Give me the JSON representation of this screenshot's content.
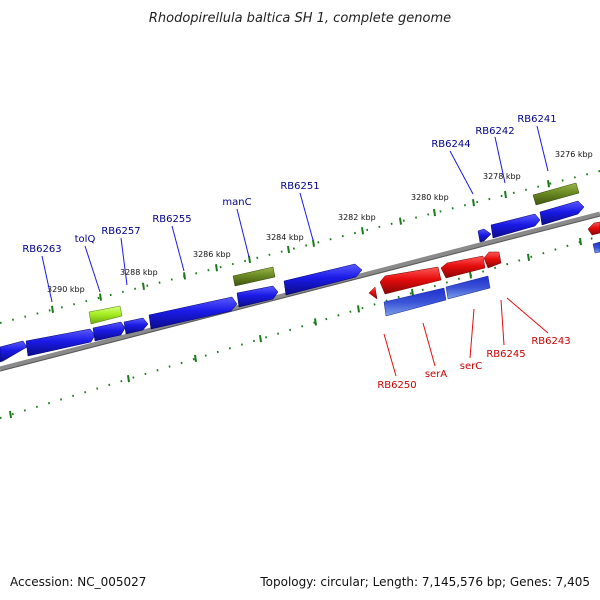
{
  "title": "Rhodopirellula baltica SH 1, complete genome",
  "footer": {
    "accession": "Accession: NC_005027",
    "summary": "Topology: circular; Length: 7,145,576 bp; Genes: 7,405"
  },
  "colors": {
    "forward_gene": "#1a1ae6",
    "reverse_gene": "#e60d0d",
    "reverse_gene_lower": "#3a52d6",
    "special_olive": "#6b8a23",
    "special_lime": "#a6ee22",
    "backbone": "#7a7a7a",
    "tick": "#1a7a1a",
    "forward_label": "#00008b",
    "reverse_label": "#cc0000"
  },
  "position_labels": [
    "3290 kbp",
    "3288 kbp",
    "3286 kbp",
    "3284 kbp",
    "3282 kbp",
    "3280 kbp",
    "3278 kbp",
    "3276 kbp"
  ],
  "forward_labels": [
    "RB6263",
    "tolQ",
    "RB6257",
    "RB6255",
    "manC",
    "RB6251",
    "RB6244",
    "RB6242",
    "RB6241"
  ],
  "reverse_labels": [
    "RB6250",
    "serA",
    "serC",
    "RB6245",
    "RB6243"
  ]
}
